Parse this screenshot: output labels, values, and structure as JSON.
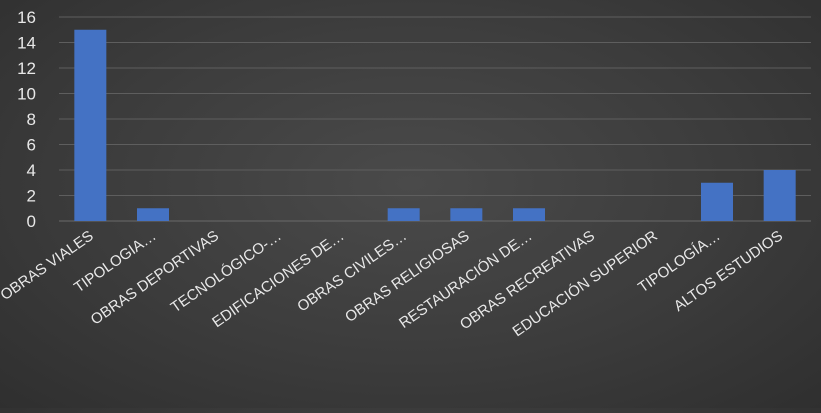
{
  "chart_data": {
    "type": "bar",
    "title": "",
    "xlabel": "",
    "ylabel": "",
    "categories": [
      "OBRAS VIALES",
      "TIPOLOGIA…",
      "OBRAS DEPORTIVAS",
      "TECNOLÓGICO-…",
      "EDIFICACIONES DE…",
      "OBRAS CIVILES…",
      "OBRAS RELIGIOSAS",
      "RESTAURACIÓN DE…",
      "OBRAS RECREATIVAS",
      "EDUCACIÓN SUPERIOR",
      "TIPOLOGÍA…",
      "ALTOS ESTUDIOS"
    ],
    "values": [
      15,
      1,
      0,
      0,
      0,
      1,
      1,
      1,
      0,
      0,
      3,
      4
    ],
    "ylim": [
      0,
      16
    ],
    "yticks": [
      0,
      2,
      4,
      6,
      8,
      10,
      12,
      14,
      16
    ],
    "grid": true,
    "legend": "none",
    "colors": {
      "bar": "#4472c4",
      "grid": "#5e5e5e",
      "text": "#e8e8e8"
    }
  }
}
